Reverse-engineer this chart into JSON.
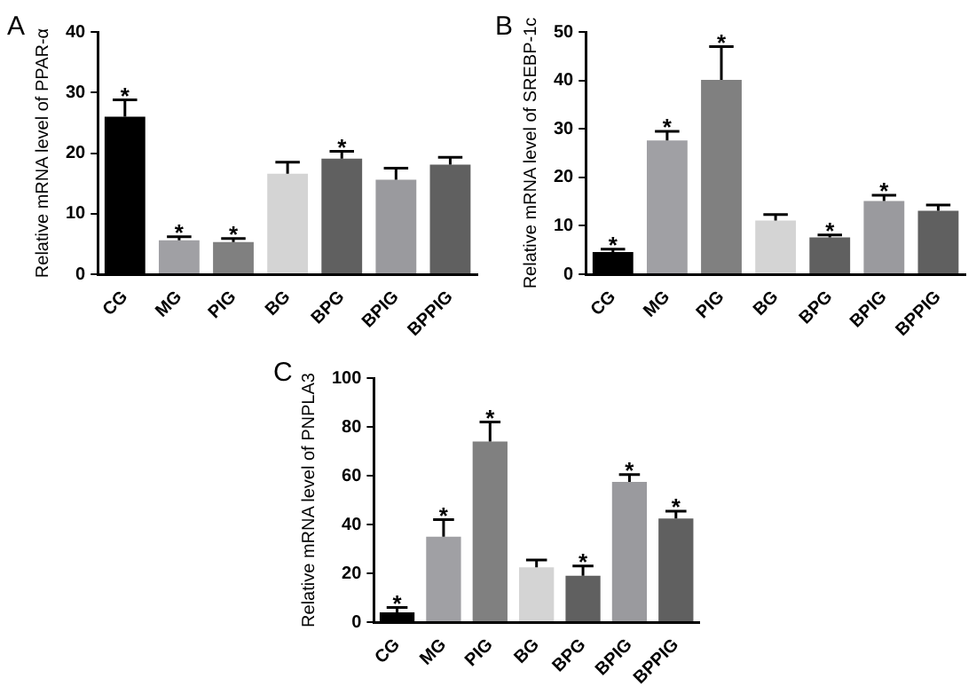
{
  "chart_data": [
    {
      "type": "bar",
      "ylabel": "Relative mRNA level of PPAR-α",
      "categories": [
        "CG",
        "MG",
        "PIG",
        "BG",
        "BPG",
        "BPIG",
        "BPPIG"
      ],
      "values": [
        26,
        5.6,
        5.3,
        16.6,
        19.1,
        15.6,
        18.1
      ],
      "errors": [
        2.8,
        0.6,
        0.6,
        1.9,
        1.2,
        1.9,
        1.2
      ],
      "colors": [
        "#000000",
        "#a0a0a4",
        "#808080",
        "#d4d4d4",
        "#606060",
        "#9a9a9e",
        "#606060"
      ],
      "ylim": [
        0,
        40
      ],
      "yticks": [
        0,
        10,
        20,
        30,
        40
      ],
      "grid": false,
      "legend": false,
      "annotations": [
        "A",
        {
          "text": "*",
          "x": "CG",
          "y": 28.8
        },
        {
          "text": "*",
          "x": "MG",
          "y": 6.2
        },
        {
          "text": "*",
          "x": "PIG",
          "y": 5.9
        },
        {
          "text": "*",
          "x": "BPG",
          "y": 20.3
        }
      ]
    },
    {
      "type": "bar",
      "ylabel": "Relative mRNA level of SREBP-1c",
      "categories": [
        "CG",
        "MG",
        "PIG",
        "BG",
        "BPG",
        "BPIG",
        "BPPIG"
      ],
      "values": [
        4.6,
        27.6,
        40.1,
        11.1,
        7.6,
        15.1,
        13.1
      ],
      "errors": [
        0.6,
        1.9,
        6.9,
        1.2,
        0.5,
        1.2,
        1.2
      ],
      "colors": [
        "#000000",
        "#a0a0a4",
        "#808080",
        "#d4d4d4",
        "#606060",
        "#9a9a9e",
        "#606060"
      ],
      "ylim": [
        0,
        50
      ],
      "yticks": [
        0,
        10,
        20,
        30,
        40,
        50
      ],
      "grid": false,
      "legend": false,
      "annotations": [
        "B",
        {
          "text": "*",
          "x": "CG",
          "y": 5.2
        },
        {
          "text": "*",
          "x": "MG",
          "y": 29.5
        },
        {
          "text": "*",
          "x": "PIG",
          "y": 47
        },
        {
          "text": "*",
          "x": "BPG",
          "y": 8.1
        },
        {
          "text": "*",
          "x": "BPIG",
          "y": 16.3
        }
      ]
    },
    {
      "type": "bar",
      "ylabel": "Relative mRNA level of PNPLA3",
      "categories": [
        "CG",
        "MG",
        "PIG",
        "BG",
        "BPG",
        "BPIG",
        "BPPIG"
      ],
      "values": [
        4,
        35,
        74,
        22.5,
        19,
        57.5,
        42.5
      ],
      "errors": [
        2,
        7,
        8,
        3,
        4,
        3,
        3
      ],
      "colors": [
        "#000000",
        "#a0a0a4",
        "#808080",
        "#d4d4d4",
        "#606060",
        "#9a9a9e",
        "#606060"
      ],
      "ylim": [
        0,
        100
      ],
      "yticks": [
        0,
        20,
        40,
        60,
        80,
        100
      ],
      "grid": false,
      "legend": false,
      "annotations": [
        "C",
        {
          "text": "*",
          "x": "CG",
          "y": 6
        },
        {
          "text": "*",
          "x": "MG",
          "y": 42
        },
        {
          "text": "*",
          "x": "PIG",
          "y": 82
        },
        {
          "text": "*",
          "x": "BPG",
          "y": 23
        },
        {
          "text": "*",
          "x": "BPIG",
          "y": 60.5
        },
        {
          "text": "*",
          "x": "BPPIG",
          "y": 45.5
        }
      ]
    }
  ]
}
